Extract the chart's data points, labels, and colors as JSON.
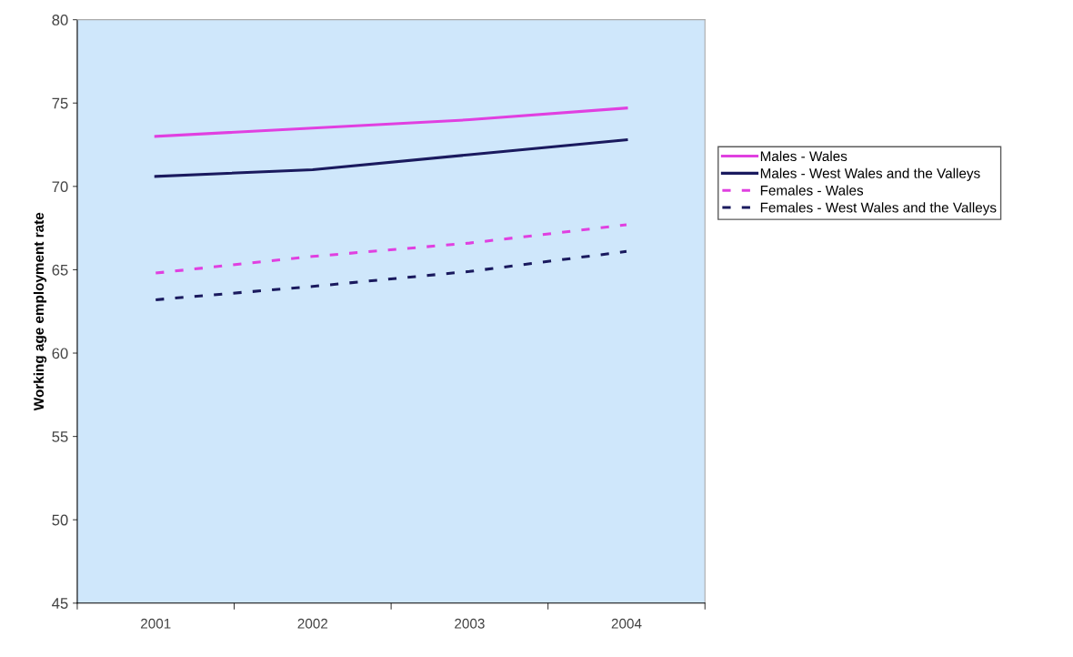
{
  "chart_data": {
    "type": "line",
    "ylabel": "Working age employment rate",
    "categories": [
      "2001",
      "2002",
      "2003",
      "2004"
    ],
    "series": [
      {
        "name": "Males - Wales",
        "color": "#e040e0",
        "line_style": "solid",
        "values": [
          73.0,
          73.5,
          74.0,
          74.7
        ]
      },
      {
        "name": "Males - West Wales and the Valleys",
        "color": "#1a1a5e",
        "line_style": "solid",
        "values": [
          70.6,
          71.0,
          71.9,
          72.8
        ]
      },
      {
        "name": "Females - Wales",
        "color": "#e040e0",
        "line_style": "dashed",
        "values": [
          64.8,
          65.8,
          66.6,
          67.7
        ]
      },
      {
        "name": "Females - West Wales and the Valleys",
        "color": "#1a1a5e",
        "line_style": "dashed",
        "values": [
          63.2,
          64.0,
          64.9,
          66.1
        ]
      }
    ],
    "ylim": [
      45,
      80
    ],
    "yticks": [
      45,
      50,
      55,
      60,
      65,
      70,
      75,
      80
    ],
    "grid": false,
    "legend": "right",
    "marker": "none"
  }
}
